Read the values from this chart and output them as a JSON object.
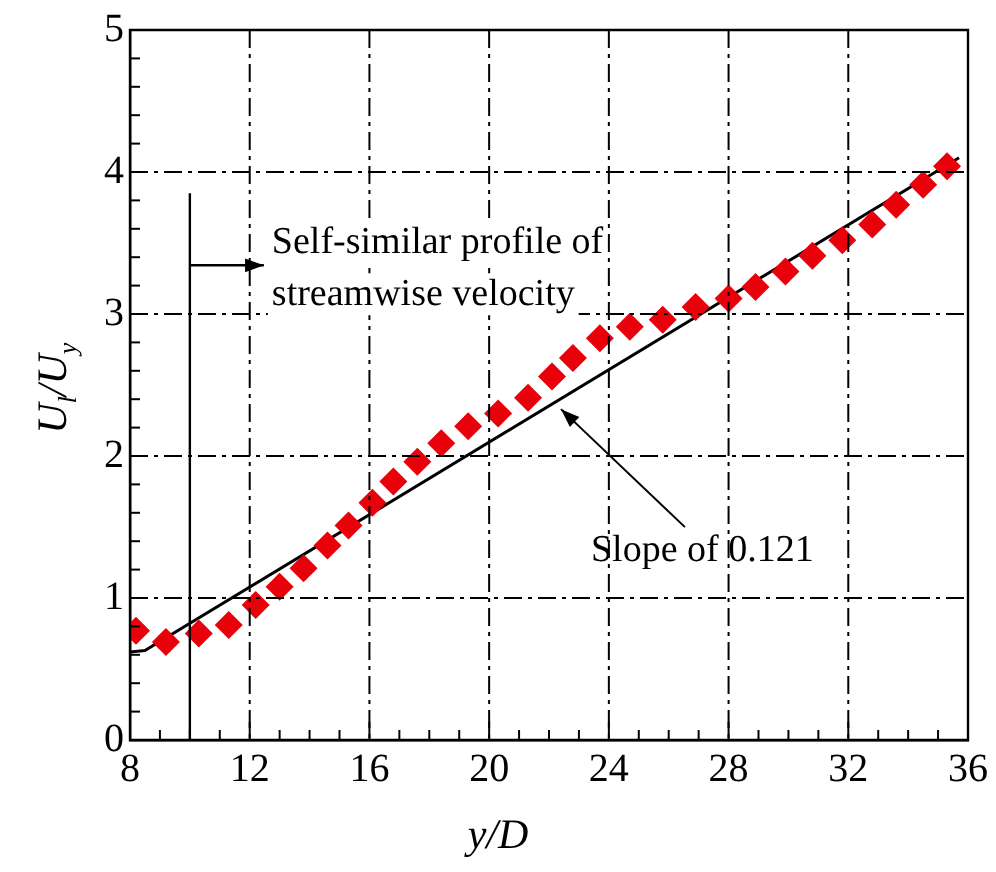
{
  "chart_data": {
    "type": "scatter",
    "xlabel": "y/D",
    "ylabel": "U$_{l}$/U$_{y}$",
    "xlim": [
      8,
      36
    ],
    "ylim": [
      0,
      5
    ],
    "xticks": [
      8,
      {
        "value": 9,
        "label": null
      },
      {
        "value": 10,
        "label": null
      },
      {
        "value": 11,
        "label": null
      },
      12,
      {
        "value": 13,
        "label": null
      },
      {
        "value": 14,
        "label": null
      },
      {
        "value": 15,
        "label": null
      },
      16,
      {
        "value": 17,
        "label": null
      },
      {
        "value": 18,
        "label": null
      },
      {
        "value": 19,
        "label": null
      },
      20,
      {
        "value": 21,
        "label": null
      },
      {
        "value": 22,
        "label": null
      },
      {
        "value": 23,
        "label": null
      },
      24,
      {
        "value": 25,
        "label": null
      },
      {
        "value": 26,
        "label": null
      },
      {
        "value": 27,
        "label": null
      },
      28,
      {
        "value": 29,
        "label": null
      },
      {
        "value": 30,
        "label": null
      },
      {
        "value": 31,
        "label": null
      },
      32,
      {
        "value": 33,
        "label": null
      },
      {
        "value": 34,
        "label": null
      },
      {
        "value": 35,
        "label": null
      },
      36
    ],
    "yticks": [
      0,
      {
        "value": 0.2,
        "label": null
      },
      {
        "value": 0.4,
        "label": null
      },
      {
        "value": 0.6,
        "label": null
      },
      {
        "value": 0.8,
        "label": null
      },
      1,
      {
        "value": 1.2,
        "label": null
      },
      {
        "value": 1.4,
        "label": null
      },
      {
        "value": 1.6,
        "label": null
      },
      {
        "value": 1.8,
        "label": null
      },
      2,
      {
        "value": 2.2,
        "label": null
      },
      {
        "value": 2.4,
        "label": null
      },
      {
        "value": 2.6,
        "label": null
      },
      {
        "value": 2.8,
        "label": null
      },
      3,
      {
        "value": 3.2,
        "label": null
      },
      {
        "value": 3.4,
        "label": null
      },
      {
        "value": 3.6,
        "label": null
      },
      {
        "value": 3.8,
        "label": null
      },
      4,
      {
        "value": 4.2,
        "label": null
      },
      {
        "value": 4.4,
        "label": null
      },
      {
        "value": 4.6,
        "label": null
      },
      {
        "value": 4.8,
        "label": null
      },
      5
    ],
    "grid": true,
    "series": [
      {
        "color": "#e8000b",
        "marker": "diamond",
        "x": [
          8.2,
          9.2,
          10.3,
          11.3,
          12.2,
          13.0,
          13.8,
          14.6,
          15.3,
          16.1,
          16.8,
          17.6,
          18.4,
          19.3,
          20.3,
          21.3,
          22.1,
          22.8,
          23.7,
          24.7,
          25.8,
          26.9,
          28.0,
          28.9,
          29.9,
          30.8,
          31.8,
          32.8,
          33.6,
          34.5,
          35.3
        ],
        "values": [
          0.77,
          0.69,
          0.75,
          0.81,
          0.95,
          1.08,
          1.21,
          1.37,
          1.51,
          1.67,
          1.82,
          1.96,
          2.09,
          2.21,
          2.3,
          2.41,
          2.56,
          2.69,
          2.83,
          2.91,
          2.96,
          3.05,
          3.11,
          3.19,
          3.3,
          3.41,
          3.52,
          3.63,
          3.77,
          3.91,
          4.04
        ]
      },
      {
        "type": "line",
        "color": "#000000",
        "marker": "none",
        "x": [
          8,
          8.5,
          35.7
        ],
        "values": [
          0.62,
          0.63,
          4.1
        ]
      }
    ],
    "ref_lines": [
      {
        "axis": "x",
        "value": 10,
        "label": "Self-similar profile of streamwise velocity",
        "color": "#000000"
      }
    ],
    "annotations": [
      {
        "text": "Slope of 0.121",
        "x": 22.4,
        "y": 2.33
      }
    ]
  }
}
